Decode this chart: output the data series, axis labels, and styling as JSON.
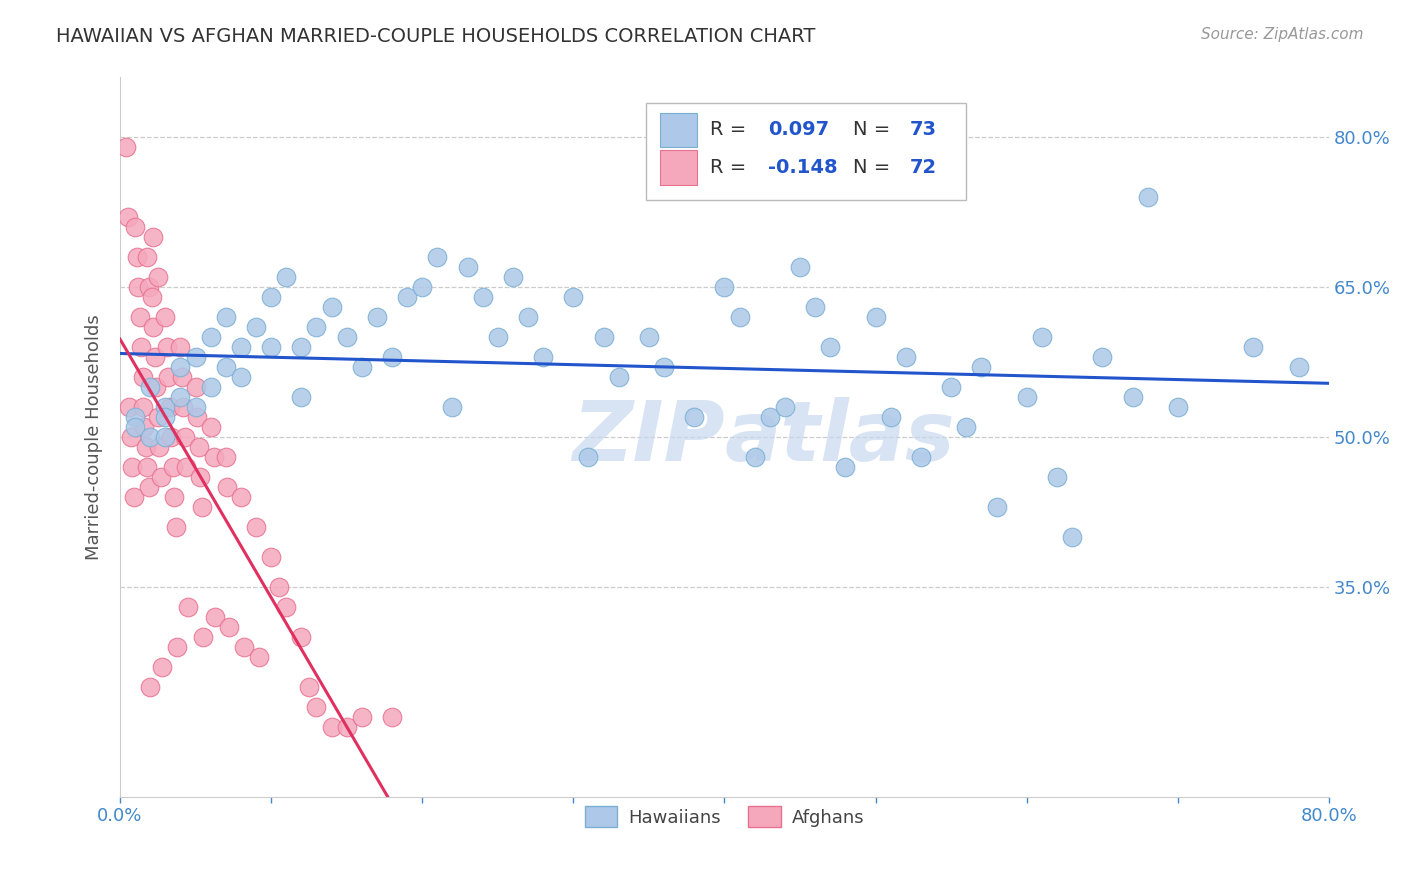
{
  "title": "HAWAIIAN VS AFGHAN MARRIED-COUPLE HOUSEHOLDS CORRELATION CHART",
  "source": "Source: ZipAtlas.com",
  "ylabel": "Married-couple Households",
  "xmin": 0.0,
  "xmax": 0.8,
  "ymin": 0.14,
  "ymax": 0.86,
  "yticks": [
    0.8,
    0.65,
    0.5,
    0.35
  ],
  "ytick_labels": [
    "80.0%",
    "65.0%",
    "50.0%",
    "35.0%"
  ],
  "xticks": [
    0.0,
    0.1,
    0.2,
    0.3,
    0.4,
    0.5,
    0.6,
    0.7,
    0.8
  ],
  "xtick_labels": [
    "0.0%",
    "",
    "",
    "",
    "",
    "",
    "",
    "",
    "80.0%"
  ],
  "hawaiian_color": "#adc8e8",
  "afghan_color": "#f5a8bc",
  "hawaiian_edge": "#7aafd4",
  "afghan_edge": "#e87090",
  "regression_blue": "#2255cc",
  "regression_pink": "#e03060",
  "regression_pink_dashed": "#d4aabb",
  "watermark_color": "#d8e4f4",
  "R_hawaiian": 0.097,
  "N_hawaiian": 73,
  "R_afghan": -0.148,
  "N_afghan": 72,
  "legend_text_color": "#2255cc",
  "legend_label_color": "#333333"
}
